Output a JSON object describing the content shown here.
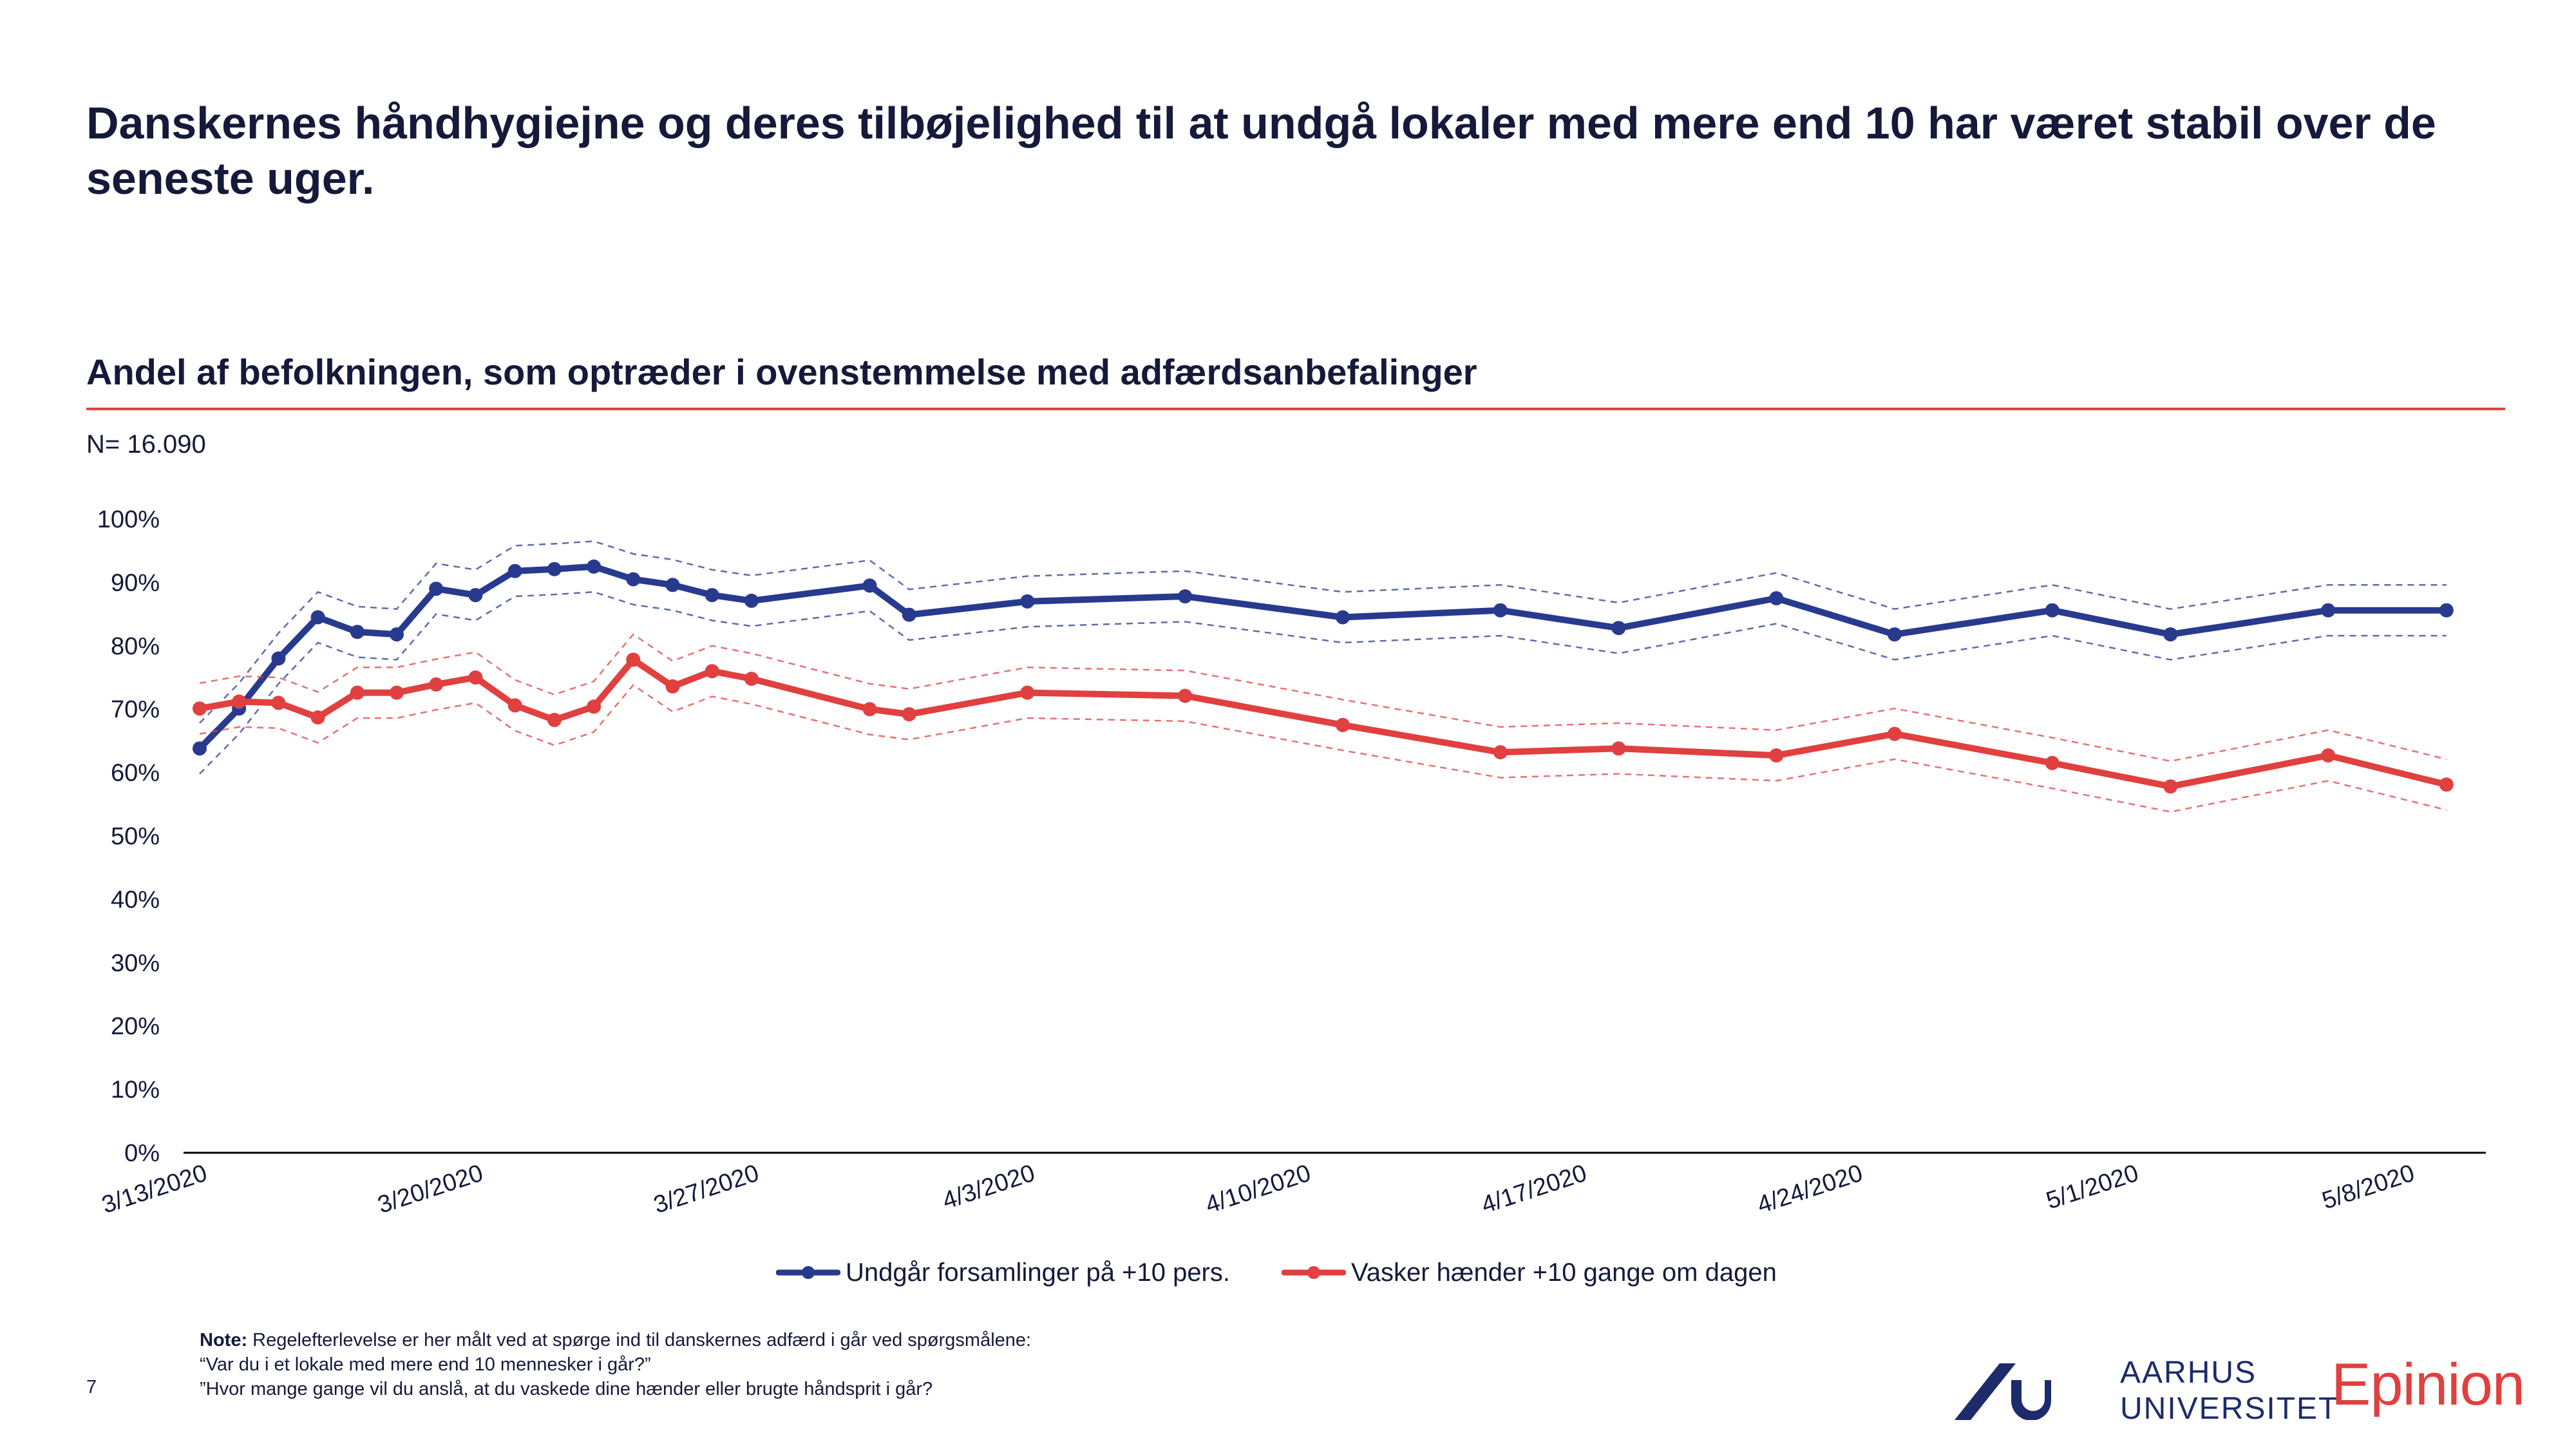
{
  "page": {
    "headline": "Danskernes håndhygiejne og deres tilbøjelighed til at undgå lokaler med mere end 10 har været stabil over de seneste uger.",
    "subtitle": "Andel af befolkningen, som optræder i ovenstemmelse med adfærdsanbefalinger",
    "n_label": "N= 16.090",
    "note_label": "Note:",
    "note_text": " Regelefterlevelse er her målt ved at spørge ind til danskernes adfærd i går ved spørgsmålene:",
    "note_q1": "“Var du i et lokale med mere end 10 mennesker i går?”",
    "note_q2": "”Hvor mange gange vil du anslå, at du vaskede dine hænder eller brugte håndsprit i går?",
    "page_number": "7",
    "logo_au_line1": "AARHUS",
    "logo_au_line2": "UNIVERSITET",
    "logo_epinion": "Epinion"
  },
  "colors": {
    "blue": "#283a8e",
    "red": "#e0403f",
    "axis": "#000000",
    "text": "#15193a"
  },
  "chart_data": {
    "type": "line",
    "ylim": [
      0,
      100
    ],
    "y_ticks": [
      "0%",
      "10%",
      "20%",
      "30%",
      "40%",
      "50%",
      "60%",
      "70%",
      "80%",
      "90%",
      "100%"
    ],
    "x_tick_labels": [
      "3/13/2020",
      "3/20/2020",
      "3/27/2020",
      "4/3/2020",
      "4/10/2020",
      "4/17/2020",
      "4/24/2020",
      "5/1/2020",
      "5/8/2020"
    ],
    "x_range": [
      "2020-03-13",
      "2020-05-10"
    ],
    "confidence_bands": "dashed",
    "legend_position": "bottom",
    "series": [
      {
        "name": "Undgår forsamlinger på +10 pers.",
        "color": "#283a8e",
        "points": [
          [
            "2020-03-13",
            63.8
          ],
          [
            "2020-03-14",
            70.1
          ],
          [
            "2020-03-15",
            78.0
          ],
          [
            "2020-03-16",
            84.5
          ],
          [
            "2020-03-17",
            82.2
          ],
          [
            "2020-03-18",
            81.8
          ],
          [
            "2020-03-19",
            89.0
          ],
          [
            "2020-03-20",
            88.0
          ],
          [
            "2020-03-21",
            91.8
          ],
          [
            "2020-03-22",
            92.1
          ],
          [
            "2020-03-23",
            92.5
          ],
          [
            "2020-03-24",
            90.5
          ],
          [
            "2020-03-25",
            89.6
          ],
          [
            "2020-03-26",
            88.0
          ],
          [
            "2020-03-27",
            87.1
          ],
          [
            "2020-03-30",
            89.5
          ],
          [
            "2020-03-31",
            84.9
          ],
          [
            "2020-04-03",
            87.0
          ],
          [
            "2020-04-07",
            87.8
          ],
          [
            "2020-04-11",
            84.5
          ],
          [
            "2020-04-15",
            85.6
          ],
          [
            "2020-04-18",
            82.8
          ],
          [
            "2020-04-22",
            87.5
          ],
          [
            "2020-04-25",
            81.8
          ],
          [
            "2020-04-29",
            85.6
          ],
          [
            "2020-05-02",
            81.8
          ],
          [
            "2020-05-06",
            85.6
          ],
          [
            "2020-05-09",
            85.6
          ]
        ]
      },
      {
        "name": "Vasker hænder +10 gange om dagen",
        "color": "#e0403f",
        "points": [
          [
            "2020-03-13",
            70.1
          ],
          [
            "2020-03-14",
            71.2
          ],
          [
            "2020-03-15",
            71.0
          ],
          [
            "2020-03-16",
            68.7
          ],
          [
            "2020-03-17",
            72.6
          ],
          [
            "2020-03-18",
            72.6
          ],
          [
            "2020-03-19",
            73.9
          ],
          [
            "2020-03-20",
            75.0
          ],
          [
            "2020-03-21",
            70.6
          ],
          [
            "2020-03-22",
            68.3
          ],
          [
            "2020-03-23",
            70.4
          ],
          [
            "2020-03-24",
            77.8
          ],
          [
            "2020-03-25",
            73.6
          ],
          [
            "2020-03-26",
            76.0
          ],
          [
            "2020-03-27",
            74.8
          ],
          [
            "2020-03-30",
            70.0
          ],
          [
            "2020-03-31",
            69.2
          ],
          [
            "2020-04-03",
            72.6
          ],
          [
            "2020-04-07",
            72.1
          ],
          [
            "2020-04-11",
            67.5
          ],
          [
            "2020-04-15",
            63.2
          ],
          [
            "2020-04-18",
            63.8
          ],
          [
            "2020-04-22",
            62.7
          ],
          [
            "2020-04-25",
            66.1
          ],
          [
            "2020-04-29",
            61.5
          ],
          [
            "2020-05-02",
            57.8
          ],
          [
            "2020-05-06",
            62.7
          ],
          [
            "2020-05-09",
            58.1
          ]
        ]
      }
    ]
  }
}
